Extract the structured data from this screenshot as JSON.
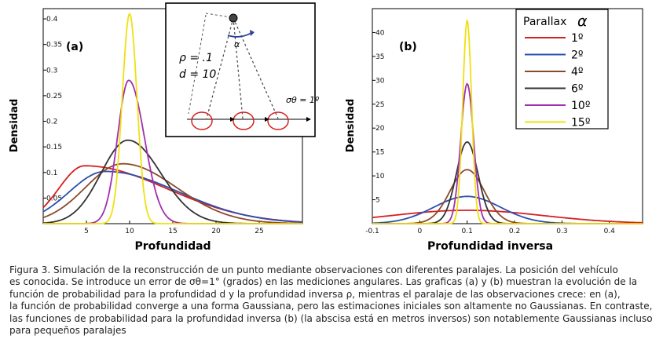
{
  "colors": {
    "1": "#d42020",
    "2": "#2a4fb0",
    "4": "#8b4a2a",
    "6": "#333333",
    "10": "#a030b0",
    "15": "#f0e010"
  },
  "chart_data": [
    {
      "type": "line",
      "panel_label": "(a)",
      "xlabel": "Profundidad",
      "ylabel": "Densidad",
      "xlim": [
        0,
        30
      ],
      "ylim": [
        0,
        0.42
      ],
      "x_ticks": [
        5,
        10,
        15,
        20,
        25
      ],
      "y_ticks": [
        0.05,
        0.1,
        0.15,
        0.2,
        0.25,
        0.3,
        0.35,
        0.4
      ],
      "x_tick_labels": [
        "5",
        "10",
        "15",
        "20",
        "25"
      ],
      "y_tick_labels": [
        "0.05",
        "0.1",
        "0.15",
        "0.2",
        "0.25",
        "0.3",
        "0.35",
        "0.4"
      ],
      "series": [
        {
          "name": "1º",
          "peak_x": 4.8,
          "peak_y": 0.113
        },
        {
          "name": "2º",
          "peak_x": 7.2,
          "peak_y": 0.102
        },
        {
          "name": "4º",
          "peak_x": 9.2,
          "peak_y": 0.117
        },
        {
          "name": "6º",
          "peak_x": 9.8,
          "peak_y": 0.163
        },
        {
          "name": "10º",
          "peak_x": 9.9,
          "peak_y": 0.28
        },
        {
          "name": "15º",
          "peak_x": 10.0,
          "peak_y": 0.41
        }
      ]
    },
    {
      "type": "line",
      "panel_label": "(b)",
      "xlabel": "Profundidad inversa",
      "ylabel": "Densidad",
      "xlim": [
        -0.1,
        0.47
      ],
      "ylim": [
        0,
        45
      ],
      "x_ticks": [
        -0.1,
        0,
        0.1,
        0.2,
        0.3,
        0.4
      ],
      "y_ticks": [
        5,
        10,
        15,
        20,
        25,
        30,
        35,
        40
      ],
      "x_tick_labels": [
        "-0.1",
        "0",
        "0.1",
        "0.2",
        "0.3",
        "0.4"
      ],
      "y_tick_labels": [
        "5",
        "10",
        "15",
        "20",
        "25",
        "30",
        "35",
        "40"
      ],
      "series": [
        {
          "name": "1º",
          "peak_x": 0.1,
          "peak_y": 2.8
        },
        {
          "name": "2º",
          "peak_x": 0.1,
          "peak_y": 5.7
        },
        {
          "name": "4º",
          "peak_x": 0.1,
          "peak_y": 11.3
        },
        {
          "name": "6º",
          "peak_x": 0.1,
          "peak_y": 17.1
        },
        {
          "name": "10º",
          "peak_x": 0.1,
          "peak_y": 29.3
        },
        {
          "name": "15º",
          "peak_x": 0.1,
          "peak_y": 42.7
        }
      ],
      "legend": {
        "title": "Parallax",
        "title_symbol": "α",
        "position": "top-right",
        "entries": [
          "1º",
          "2º",
          "4º",
          "6º",
          "10º",
          "15º"
        ]
      }
    }
  ],
  "inset": {
    "rho_label": "ρ = .1",
    "d_label": "d = 10",
    "sigma_label": "σθ = 1º",
    "alpha_label": "α"
  },
  "caption": {
    "line1": "Figura 3. Simulación de la reconstrucción de un punto mediante observaciones con diferentes paralajes. La posición del vehículo",
    "line2": "es conocida. Se introduce un error de σθ=1° (grados) en las mediciones angulares. Las graficas (a) y (b) muestran la evolución de la",
    "line3": "función de probabilidad para la profundidad d y la profundidad inversa ρ, mientras el paralaje de las observaciones crece: en (a),",
    "line4": "la función de probabilidad converge a una forma Gaussiana, pero las estimaciones iniciales son altamente no Gaussianas. En contraste,",
    "line5": "las funciones de probabilidad para la profundidad inversa (b) (la abscisa está en metros inversos) son notablemente Gaussianas incluso",
    "line6": "para pequeños paralajes"
  }
}
